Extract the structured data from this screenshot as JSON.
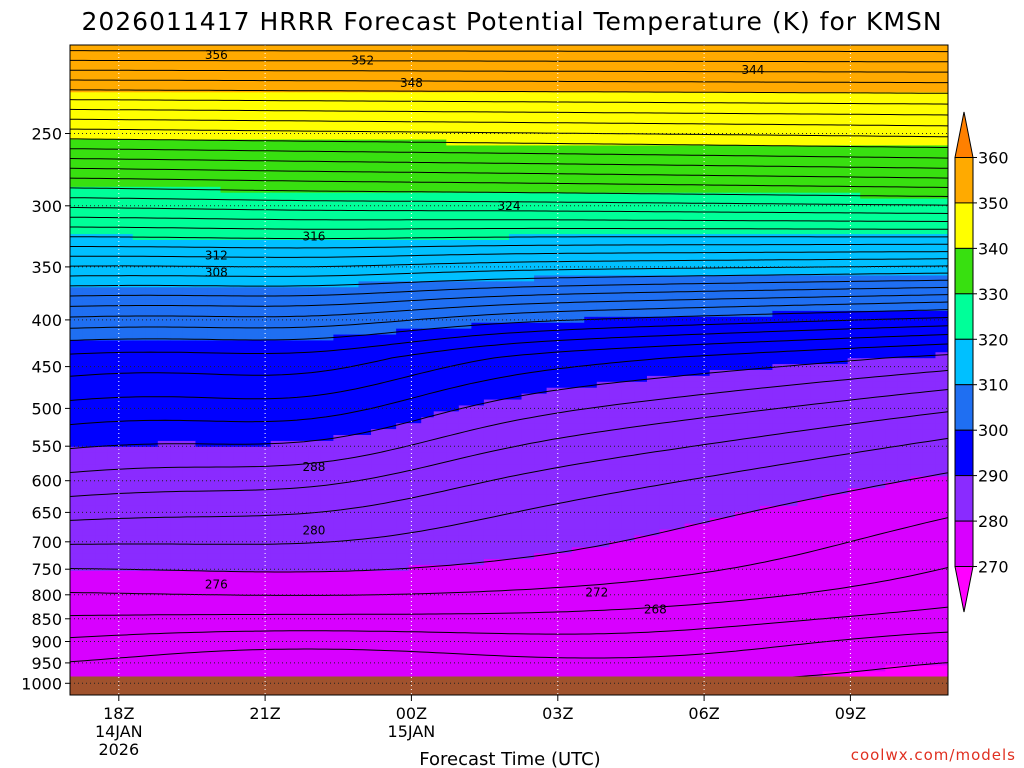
{
  "chart_data": {
    "type": "contour",
    "title": "2026011417 HRRR Forecast Potential Temperature (K) for KMSN",
    "xlabel": "Forecast Time (UTC)",
    "credit": "coolwx.com/models",
    "x_ticks": [
      {
        "hour": 1,
        "label": "18Z",
        "sub1": "14JAN",
        "sub2": "2026"
      },
      {
        "hour": 4,
        "label": "21Z",
        "sub1": "",
        "sub2": ""
      },
      {
        "hour": 7,
        "label": "00Z",
        "sub1": "15JAN",
        "sub2": ""
      },
      {
        "hour": 10,
        "label": "03Z",
        "sub1": "",
        "sub2": ""
      },
      {
        "hour": 13,
        "label": "06Z",
        "sub1": "",
        "sub2": ""
      },
      {
        "hour": 16,
        "label": "09Z",
        "sub1": "",
        "sub2": ""
      }
    ],
    "xlim": [
      0,
      18
    ],
    "y_ticks": [
      250,
      300,
      350,
      400,
      450,
      500,
      550,
      600,
      650,
      700,
      750,
      800,
      850,
      900,
      950,
      1000
    ],
    "ylim_hpa": [
      200,
      1030
    ],
    "y_scale": "log",
    "surface_pressure_hpa": 983,
    "colorbar": {
      "levels": [
        "270",
        "280",
        "290",
        "300",
        "310",
        "320",
        "330",
        "340",
        "350",
        "360"
      ],
      "colors": [
        "#ff00ff",
        "#d800ff",
        "#8a2bff",
        "#0000ff",
        "#1f6ff2",
        "#00c0ff",
        "#00ff99",
        "#38e010",
        "#ffff00",
        "#ffaa00",
        "#ff8000"
      ]
    },
    "contour_labels": [
      {
        "value": "356",
        "hour": 3.0,
        "hpa": 205
      },
      {
        "value": "352",
        "hour": 6.0,
        "hpa": 208
      },
      {
        "value": "348",
        "hour": 7.0,
        "hpa": 220
      },
      {
        "value": "344",
        "hour": 14.0,
        "hpa": 213
      },
      {
        "value": "324",
        "hour": 9.0,
        "hpa": 300
      },
      {
        "value": "316",
        "hour": 5.0,
        "hpa": 324
      },
      {
        "value": "312",
        "hour": 3.0,
        "hpa": 340
      },
      {
        "value": "308",
        "hour": 3.0,
        "hpa": 355
      },
      {
        "value": "288",
        "hour": 5.0,
        "hpa": 580
      },
      {
        "value": "280",
        "hour": 5.0,
        "hpa": 680
      },
      {
        "value": "276",
        "hour": 3.0,
        "hpa": 780
      },
      {
        "value": "272",
        "hour": 10.8,
        "hpa": 795
      },
      {
        "value": "268",
        "hour": 12.0,
        "hpa": 830
      }
    ]
  }
}
